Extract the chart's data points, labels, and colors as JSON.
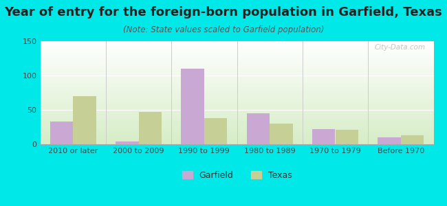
{
  "title": "Year of entry for the foreign-born population in Garfield, Texas",
  "subtitle": "(Note: State values scaled to Garfield population)",
  "categories": [
    "2010 or later",
    "2000 to 2009",
    "1990 to 1999",
    "1980 to 1989",
    "1970 to 1979",
    "Before 1970"
  ],
  "garfield_values": [
    33,
    4,
    110,
    45,
    22,
    10
  ],
  "texas_values": [
    70,
    47,
    38,
    30,
    21,
    13
  ],
  "garfield_color": "#c9a8d4",
  "texas_color": "#c5cf96",
  "background_color": "#00e8e8",
  "ylim": [
    0,
    150
  ],
  "yticks": [
    0,
    50,
    100,
    150
  ],
  "bar_width": 0.35,
  "legend_labels": [
    "Garfield",
    "Texas"
  ],
  "watermark": "City-Data.com",
  "title_fontsize": 13,
  "subtitle_fontsize": 8.5,
  "tick_fontsize": 8,
  "legend_fontsize": 9
}
